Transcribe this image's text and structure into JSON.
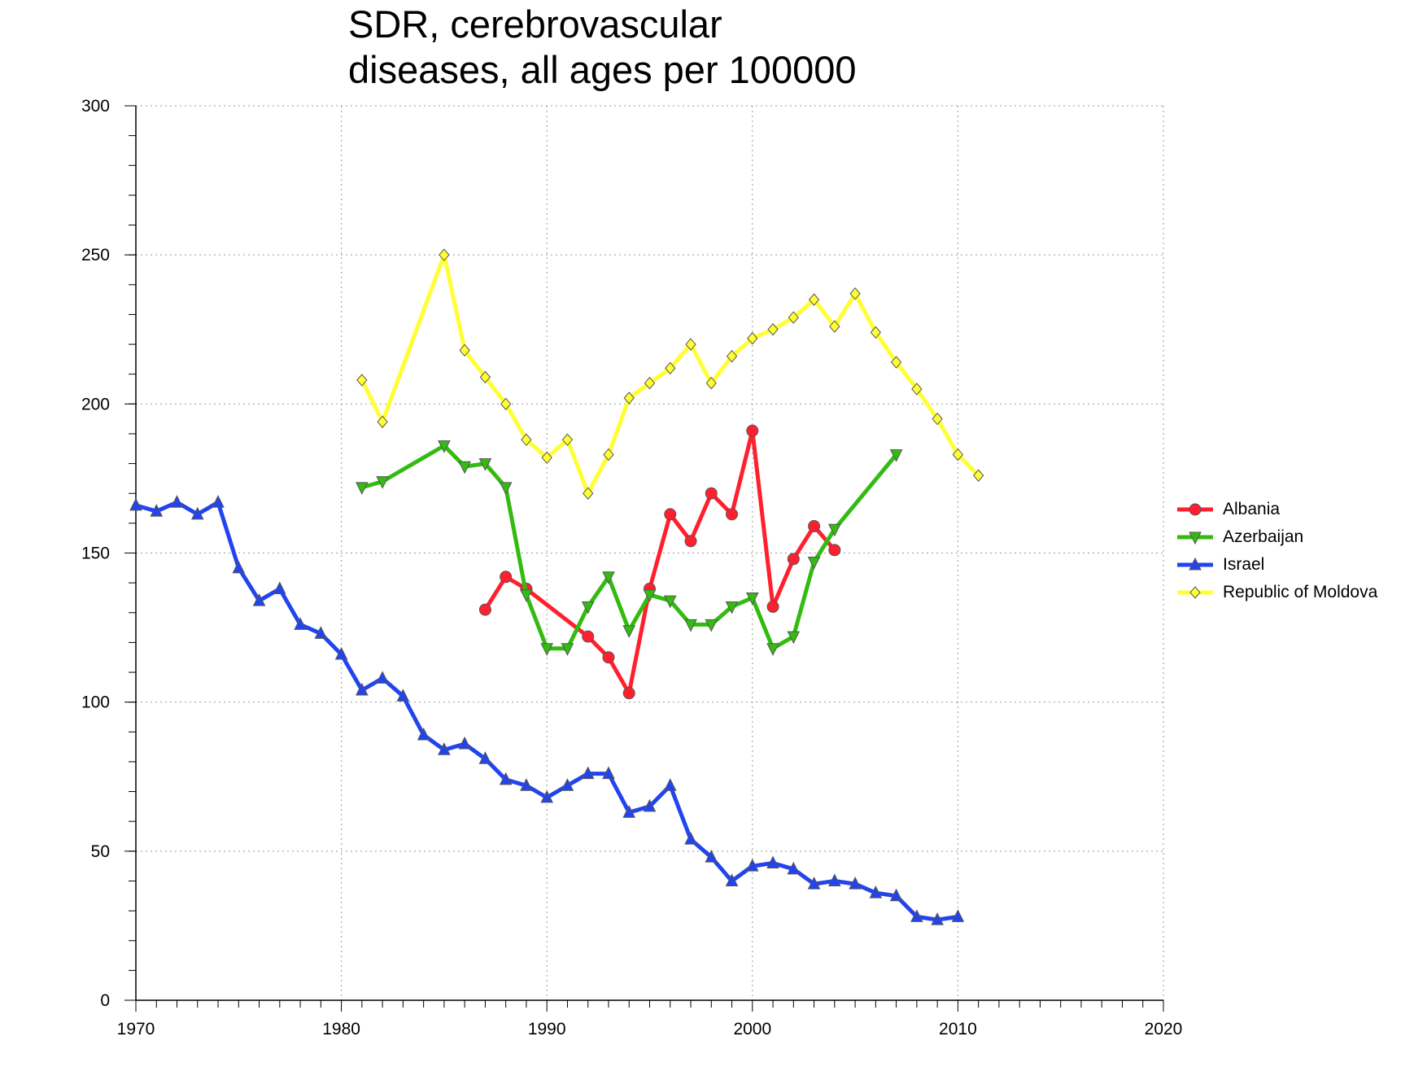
{
  "chart_data": {
    "type": "line",
    "title_lines": [
      "SDR, cerebrovascular",
      "diseases, all ages per 100000"
    ],
    "xlabel": "",
    "ylabel": "",
    "xlim": [
      1970,
      2020
    ],
    "ylim": [
      0,
      300
    ],
    "x_ticks": [
      1970,
      1980,
      1990,
      2000,
      2010,
      2020
    ],
    "y_ticks": [
      0,
      50,
      100,
      150,
      200,
      250,
      300
    ],
    "x_tick_labels": [
      "1970",
      "1980",
      "1990",
      "2000",
      "2010",
      "2020"
    ],
    "y_tick_labels": [
      "0",
      "50",
      "100",
      "150",
      "200",
      "250",
      "300"
    ],
    "grid": true,
    "legend_position": "right",
    "series": [
      {
        "name": "Albania",
        "color": "#ff1f2e",
        "marker": "circle",
        "x": [
          1987,
          1988,
          1989,
          1992,
          1993,
          1994,
          1995,
          1996,
          1997,
          1998,
          1999,
          2000,
          2001,
          2002,
          2003,
          2004
        ],
        "y": [
          131,
          142,
          138,
          122,
          115,
          103,
          138,
          163,
          154,
          170,
          163,
          191,
          132,
          148,
          159,
          151
        ]
      },
      {
        "name": "Azerbaijan",
        "color": "#33bb11",
        "marker": "triangle-down",
        "x": [
          1981,
          1982,
          1985,
          1986,
          1987,
          1988,
          1989,
          1990,
          1991,
          1992,
          1993,
          1994,
          1995,
          1996,
          1997,
          1998,
          1999,
          2000,
          2001,
          2002,
          2003,
          2004,
          2007
        ],
        "y": [
          172,
          174,
          186,
          179,
          180,
          172,
          136,
          118,
          118,
          132,
          142,
          124,
          136,
          134,
          126,
          126,
          132,
          135,
          118,
          122,
          147,
          158,
          183
        ]
      },
      {
        "name": "Israel",
        "color": "#2244ee",
        "marker": "triangle-up",
        "x": [
          1970,
          1971,
          1972,
          1973,
          1974,
          1975,
          1976,
          1977,
          1978,
          1979,
          1980,
          1981,
          1982,
          1983,
          1984,
          1985,
          1986,
          1987,
          1988,
          1989,
          1990,
          1991,
          1992,
          1993,
          1994,
          1995,
          1996,
          1997,
          1998,
          1999,
          2000,
          2001,
          2002,
          2003,
          2004,
          2005,
          2006,
          2007,
          2008,
          2009,
          2010
        ],
        "y": [
          166,
          164,
          167,
          163,
          167,
          145,
          134,
          138,
          126,
          123,
          116,
          104,
          108,
          102,
          89,
          84,
          86,
          81,
          74,
          72,
          68,
          72,
          76,
          76,
          63,
          65,
          72,
          54,
          48,
          40,
          45,
          46,
          44,
          39,
          40,
          39,
          36,
          35,
          28,
          27,
          28
        ]
      },
      {
        "name": "Republic of Moldova",
        "color": "#ffff33",
        "marker": "diamond",
        "x": [
          1981,
          1982,
          1985,
          1986,
          1987,
          1988,
          1989,
          1990,
          1991,
          1992,
          1993,
          1994,
          1995,
          1996,
          1997,
          1998,
          1999,
          2000,
          2001,
          2002,
          2003,
          2004,
          2005,
          2006,
          2007,
          2008,
          2009,
          2010,
          2011
        ],
        "y": [
          208,
          194,
          250,
          218,
          209,
          200,
          188,
          182,
          188,
          170,
          183,
          202,
          207,
          212,
          220,
          207,
          216,
          222,
          225,
          229,
          235,
          226,
          237,
          224,
          214,
          205,
          195,
          183,
          176
        ]
      }
    ]
  }
}
